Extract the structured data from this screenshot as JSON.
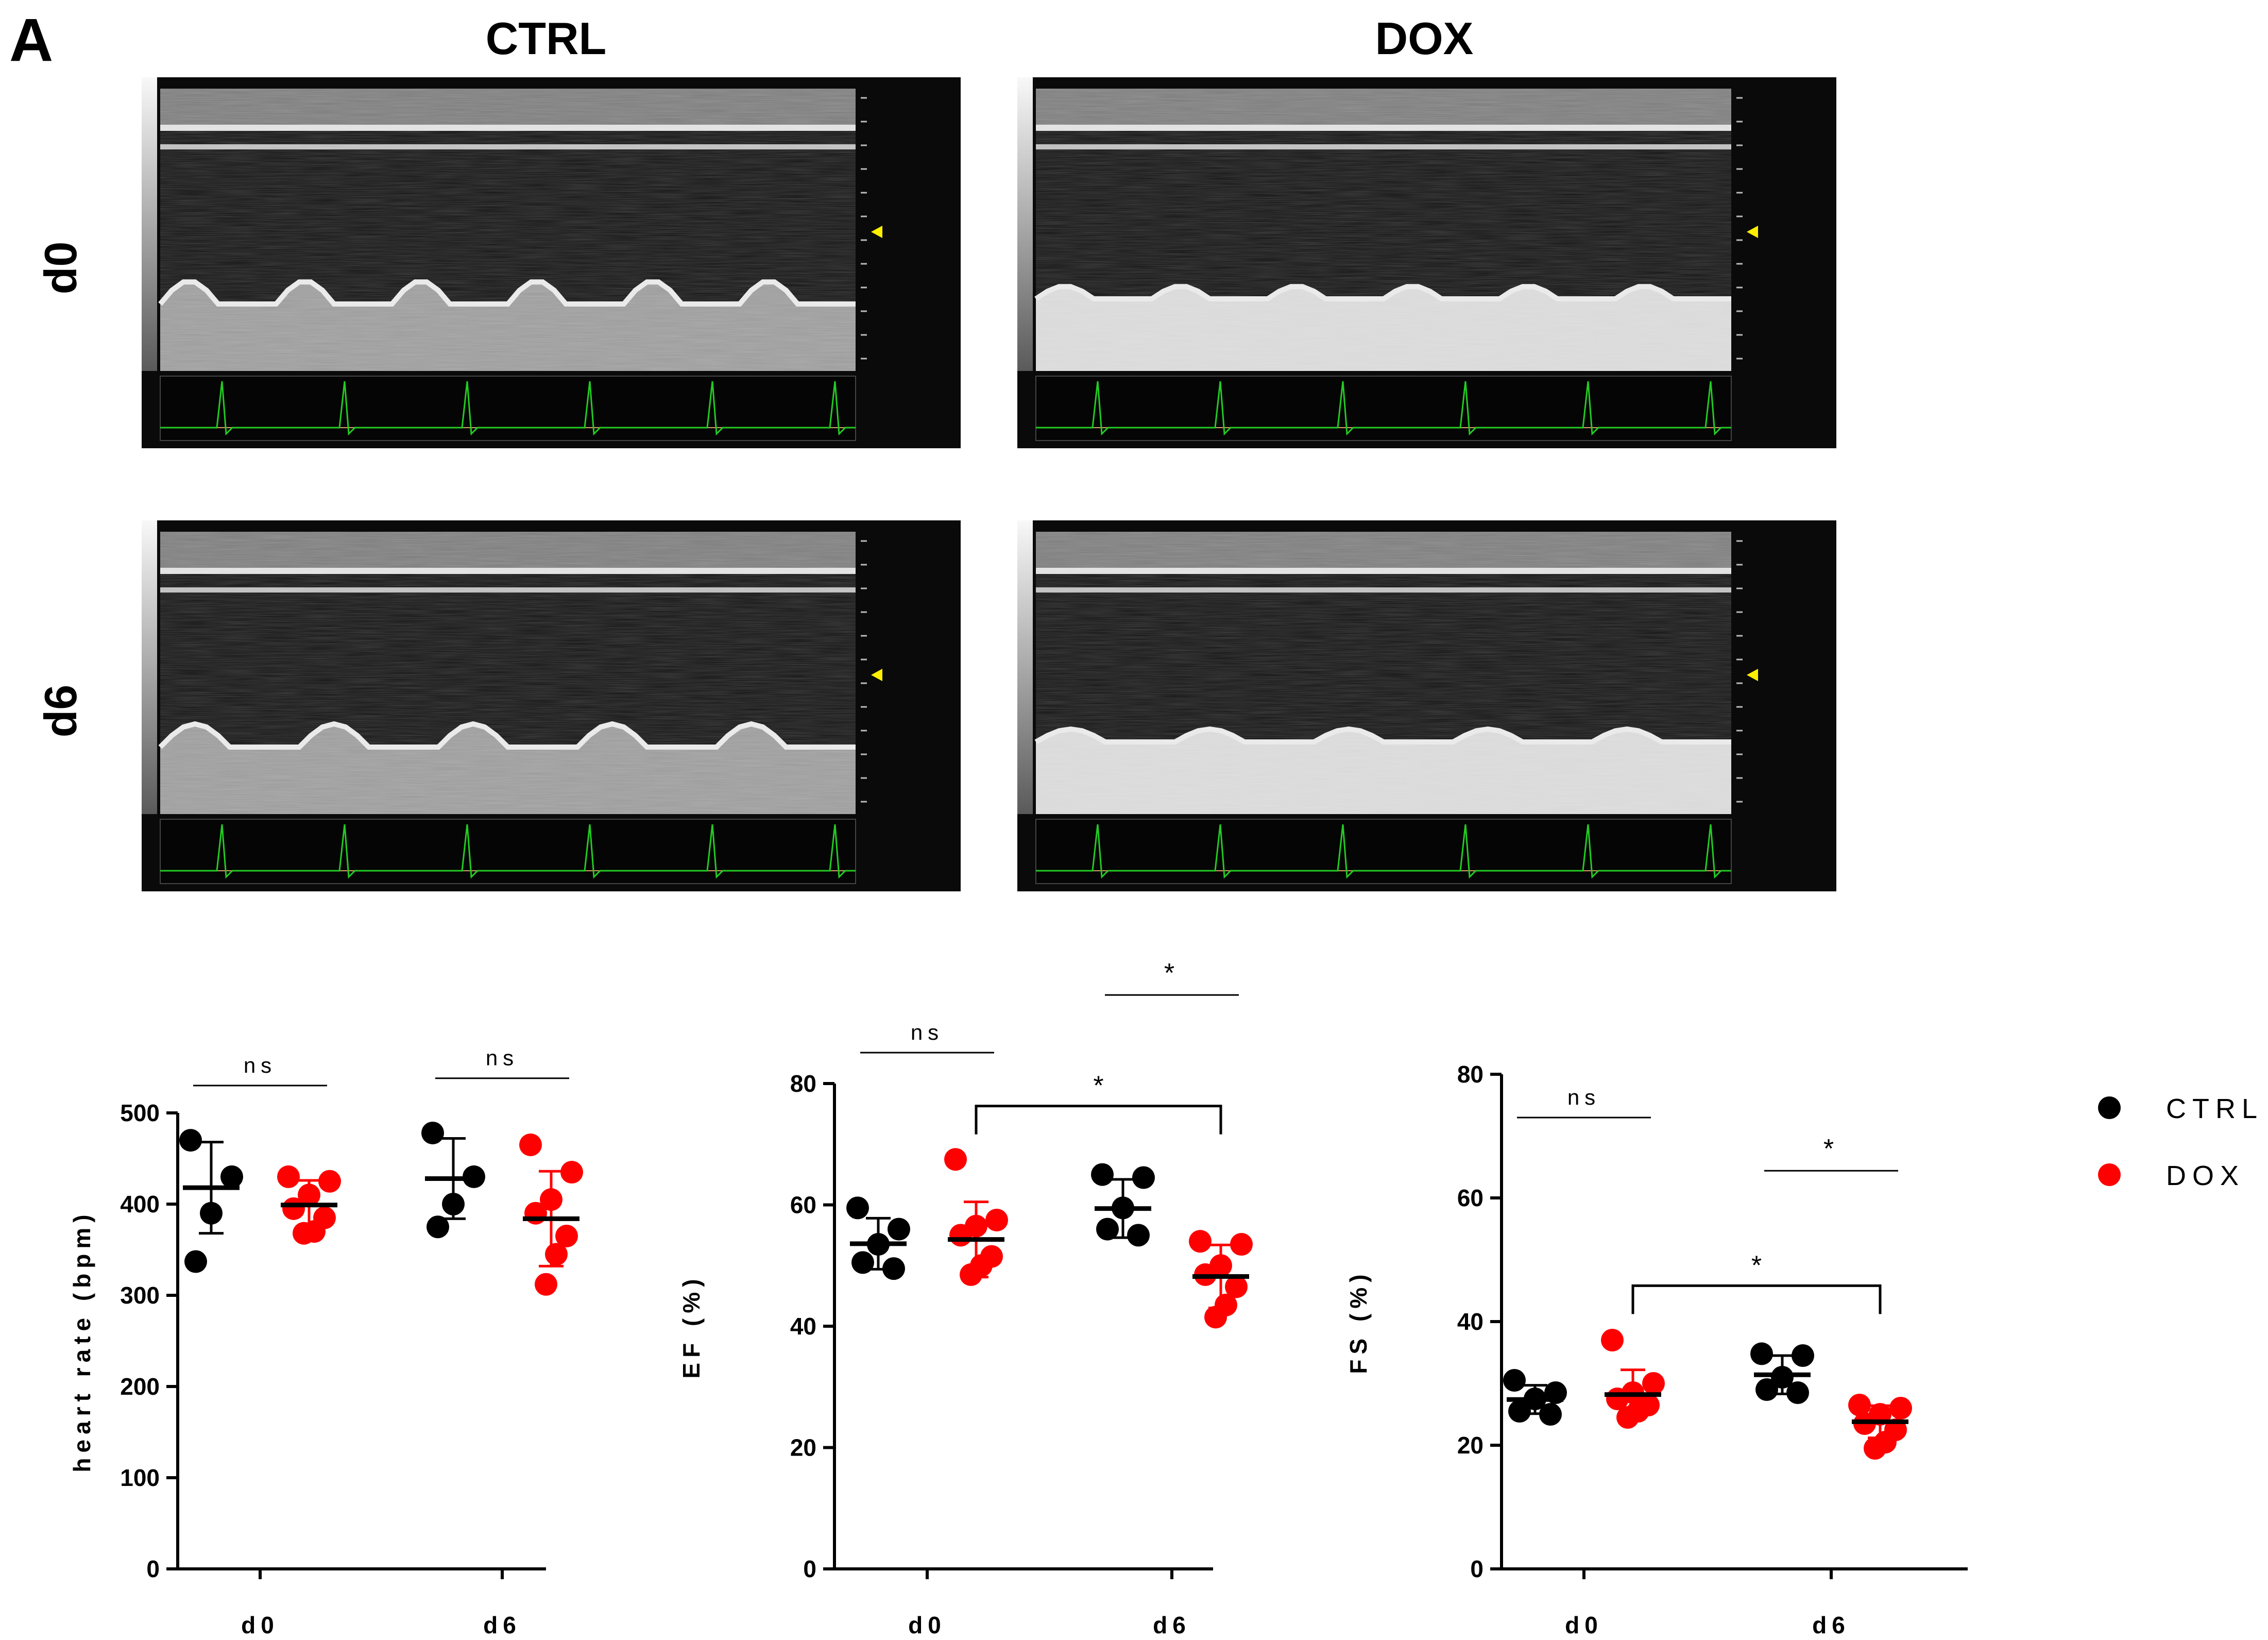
{
  "panel_letter": "A",
  "echo_images": {
    "column_labels": [
      "CTRL",
      "DOX"
    ],
    "row_labels": [
      "d0",
      "d6"
    ]
  },
  "colors": {
    "ctrl": "#000000",
    "dox": "#ff0000",
    "ecg": "#22cc22",
    "echo_dark": "#141414",
    "echo_bright": "#e8e8e8",
    "marker": "#ffee00"
  },
  "legend": {
    "placement": "right",
    "items": [
      {
        "label": "CTRL",
        "color": "#000000"
      },
      {
        "label": "DOX",
        "color": "#ff0000"
      }
    ]
  },
  "chart_data": [
    {
      "type": "scatter",
      "title": "",
      "ylabel": "heart rate (bpm)",
      "categories": [
        "d0",
        "d6"
      ],
      "ylim": [
        0,
        500
      ],
      "yticks": [
        0,
        100,
        200,
        300,
        400,
        500
      ],
      "series": [
        {
          "name": "CTRL",
          "color": "#000000",
          "groups": [
            {
              "category": "d0",
              "points": [
                470,
                430,
                390,
                337
              ],
              "mean": 418,
              "sd": 50
            },
            {
              "category": "d6",
              "points": [
                478,
                430,
                400,
                375
              ],
              "mean": 428,
              "sd": 44
            }
          ]
        },
        {
          "name": "DOX",
          "color": "#ff0000",
          "groups": [
            {
              "category": "d0",
              "points": [
                430,
                425,
                410,
                395,
                385,
                370,
                368
              ],
              "mean": 399,
              "sd": 27
            },
            {
              "category": "d6",
              "points": [
                465,
                435,
                405,
                390,
                365,
                345,
                312
              ],
              "mean": 384,
              "sd": 52
            }
          ]
        }
      ],
      "annotations": [
        {
          "text": "ns",
          "category": "d0",
          "between": [
            "CTRL",
            "DOX"
          ]
        },
        {
          "text": "ns",
          "category": "d6",
          "between": [
            "CTRL",
            "DOX"
          ]
        }
      ]
    },
    {
      "type": "scatter",
      "title": "",
      "ylabel": "EF (%)",
      "categories": [
        "d0",
        "d6"
      ],
      "ylim": [
        0,
        80
      ],
      "yticks": [
        0,
        20,
        40,
        60,
        80
      ],
      "series": [
        {
          "name": "CTRL",
          "color": "#000000",
          "groups": [
            {
              "category": "d0",
              "points": [
                59.5,
                56,
                53.5,
                50.5,
                49.5
              ],
              "mean": 53.6,
              "sd": 4.2
            },
            {
              "category": "d6",
              "points": [
                65,
                64.5,
                59.5,
                56,
                55
              ],
              "mean": 59.4,
              "sd": 4.8
            }
          ]
        },
        {
          "name": "DOX",
          "color": "#ff0000",
          "groups": [
            {
              "category": "d0",
              "points": [
                67.5,
                57.5,
                56.5,
                55,
                51.5,
                50,
                48.5
              ],
              "mean": 54.3,
              "sd": 6.2
            },
            {
              "category": "d6",
              "points": [
                54,
                53.5,
                50,
                48.5,
                46.5,
                43.5,
                41.5
              ],
              "mean": 48.2,
              "sd": 5.2
            }
          ]
        }
      ],
      "annotations": [
        {
          "text": "ns",
          "category": "d0",
          "between": [
            "CTRL",
            "DOX"
          ]
        },
        {
          "text": "*",
          "category": "d6",
          "between": [
            "CTRL",
            "DOX"
          ]
        },
        {
          "text": "*",
          "between": [
            "DOX d0",
            "DOX d6"
          ]
        }
      ]
    },
    {
      "type": "scatter",
      "title": "",
      "ylabel": "FS (%)",
      "categories": [
        "d0",
        "d6"
      ],
      "ylim": [
        0,
        80
      ],
      "yticks": [
        0,
        20,
        40,
        60,
        80
      ],
      "series": [
        {
          "name": "CTRL",
          "color": "#000000",
          "groups": [
            {
              "category": "d0",
              "points": [
                30.5,
                28.5,
                27.5,
                25.5,
                25
              ],
              "mean": 27.4,
              "sd": 2.3
            },
            {
              "category": "d6",
              "points": [
                34.8,
                34.5,
                31,
                29,
                28.5
              ],
              "mean": 31.4,
              "sd": 3.1
            }
          ]
        },
        {
          "name": "DOX",
          "color": "#ff0000",
          "groups": [
            {
              "category": "d0",
              "points": [
                37,
                30,
                28.5,
                27.5,
                26.5,
                25.5,
                24.5
              ],
              "mean": 28.2,
              "sd": 4.0
            },
            {
              "category": "d6",
              "points": [
                26.5,
                26,
                25,
                23.5,
                22.5,
                20.5,
                19.5
              ],
              "mean": 23.8,
              "sd": 2.6
            }
          ]
        }
      ],
      "annotations": [
        {
          "text": "ns",
          "category": "d0",
          "between": [
            "CTRL",
            "DOX"
          ]
        },
        {
          "text": "*",
          "category": "d6",
          "between": [
            "CTRL",
            "DOX"
          ]
        },
        {
          "text": "*",
          "between": [
            "DOX d0",
            "DOX d6"
          ]
        }
      ]
    }
  ]
}
